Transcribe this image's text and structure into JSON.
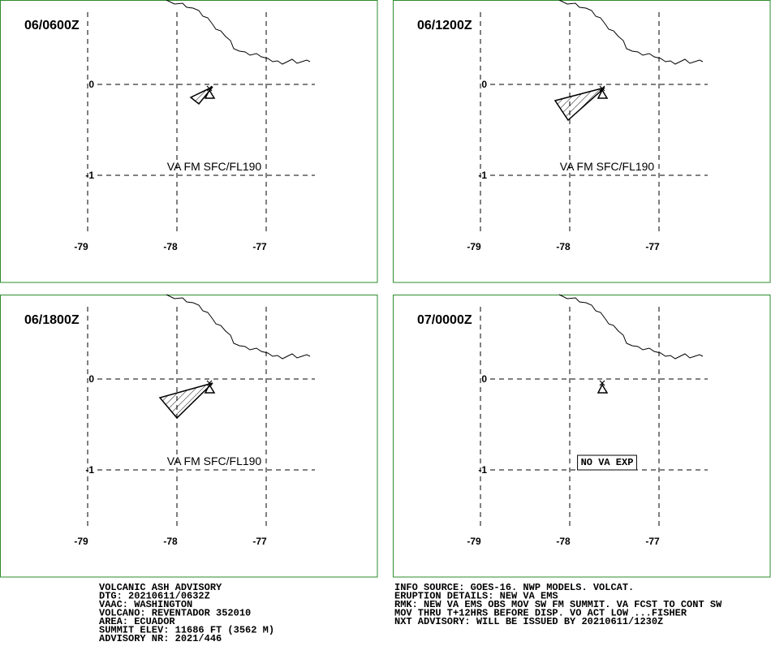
{
  "panels": [
    {
      "time": "06/0600Z",
      "ash_text": "VA FM SFC/FL190"
    },
    {
      "time": "06/1200Z",
      "ash_text": "VA FM SFC/FL190"
    },
    {
      "time": "06/1800Z",
      "ash_text": "VA FM SFC/FL190"
    },
    {
      "time": "07/0000Z",
      "ash_text": "NO VA EXP",
      "ash_text_boxed": true
    }
  ],
  "lon_ticks": [
    -79,
    -78,
    -77
  ],
  "lat_ticks": [
    0,
    -1
  ],
  "advisory_left": [
    "VOLCANIC ASH ADVISORY",
    "DTG: 20210611/0632Z",
    "VAAC: WASHINGTON",
    "VOLCANO: REVENTADOR 352010",
    "AREA: ECUADOR",
    "SUMMIT ELEV: 11686 FT (3562 M)",
    "ADVISORY NR: 2021/446"
  ],
  "advisory_right": [
    "INFO SOURCE: GOES-16. NWP MODELS. VOLCAT.",
    "ERUPTION DETAILS: NEW VA EMS",
    "RMK: NEW VA EMS OBS MOV SW FM SUMMIT. VA FCST TO CONT SW",
    "MOV THRU T+12HRS BEFORE DISP. VO ACT LOW ...FISHER",
    "NXT ADVISORY: WILL BE ISSUED BY 20210611/1230Z"
  ]
}
